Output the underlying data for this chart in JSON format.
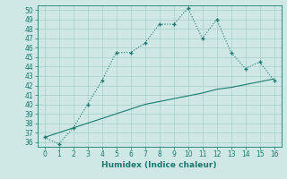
{
  "xlabel": "Humidex (Indice chaleur)",
  "x": [
    0,
    1,
    2,
    3,
    4,
    5,
    6,
    7,
    8,
    9,
    10,
    11,
    12,
    13,
    14,
    15,
    16
  ],
  "y_curve": [
    36.5,
    35.8,
    37.5,
    40.0,
    42.5,
    45.5,
    45.5,
    46.5,
    48.5,
    48.5,
    50.2,
    47.0,
    49.0,
    45.5,
    43.8,
    44.5,
    42.5
  ],
  "y_line": [
    36.5,
    37.0,
    37.5,
    38.0,
    38.5,
    39.0,
    39.5,
    40.0,
    40.3,
    40.6,
    40.9,
    41.2,
    41.6,
    41.8,
    42.1,
    42.4,
    42.7
  ],
  "ylim": [
    35.5,
    50.5
  ],
  "xlim": [
    -0.5,
    16.5
  ],
  "yticks": [
    36,
    37,
    38,
    39,
    40,
    41,
    42,
    43,
    44,
    45,
    46,
    47,
    48,
    49,
    50
  ],
  "xticks": [
    0,
    1,
    2,
    3,
    4,
    5,
    6,
    7,
    8,
    9,
    10,
    11,
    12,
    13,
    14,
    15,
    16
  ],
  "line_color": "#1a7a6e",
  "bg_color": "#cfe8e5",
  "grid_color": "#a8cdc9"
}
